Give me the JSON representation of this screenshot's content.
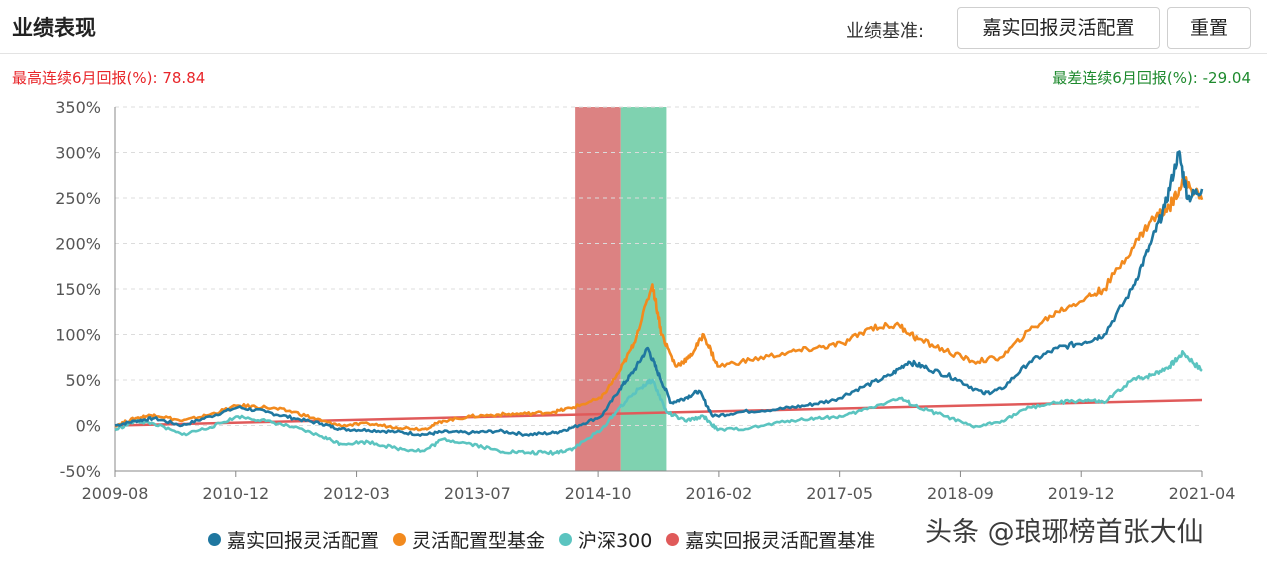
{
  "header": {
    "title": "业绩表现",
    "benchmark_label": "业绩基准:",
    "benchmark_button": "嘉实回报灵活配置",
    "reset_button": "重置"
  },
  "stats": {
    "max_label": "最高连续6月回报(%):",
    "max_value": "78.84",
    "min_label": "最差连续6月回报(%):",
    "min_value": "-29.04"
  },
  "watermark": "头条 @琅琊榜首张大仙",
  "colors": {
    "fund": "#1f77a0",
    "category": "#f28a1e",
    "hs300": "#5bc4c0",
    "benchmark": "#e05a5a",
    "band_red": "#dc8282",
    "band_green": "#7fd2b0"
  },
  "chart_data": {
    "type": "line",
    "title": "",
    "xlabel": "",
    "ylabel": "",
    "x_ticks": [
      "2009-08",
      "2010-12",
      "2012-03",
      "2013-07",
      "2014-10",
      "2016-02",
      "2017-05",
      "2018-09",
      "2019-12",
      "2021-04"
    ],
    "x_range": [
      2009.58,
      2021.25
    ],
    "y_ticks": [
      "350%",
      "300%",
      "250%",
      "200%",
      "150%",
      "100%",
      "50%",
      "0%",
      "-50%"
    ],
    "ylim": [
      -50,
      350
    ],
    "grid": true,
    "legend_position": "bottom",
    "shaded_periods": [
      {
        "start": 2014.52,
        "end": 2015.01,
        "color": "red"
      },
      {
        "start": 2015.01,
        "end": 2015.5,
        "color": "green"
      }
    ],
    "series": [
      {
        "name": "嘉实回报灵活配置",
        "color_key": "fund",
        "points": [
          [
            2009.58,
            0
          ],
          [
            2009.8,
            5
          ],
          [
            2010.0,
            8
          ],
          [
            2010.3,
            0
          ],
          [
            2010.6,
            10
          ],
          [
            2010.9,
            20
          ],
          [
            2011.2,
            15
          ],
          [
            2011.5,
            8
          ],
          [
            2011.8,
            2
          ],
          [
            2012.0,
            -4
          ],
          [
            2012.3,
            -5
          ],
          [
            2012.6,
            -7
          ],
          [
            2012.9,
            -10
          ],
          [
            2013.1,
            -7
          ],
          [
            2013.4,
            -8
          ],
          [
            2013.7,
            -6
          ],
          [
            2014.0,
            -10
          ],
          [
            2014.3,
            -8
          ],
          [
            2014.5,
            -2
          ],
          [
            2014.8,
            10
          ],
          [
            2015.0,
            40
          ],
          [
            2015.15,
            60
          ],
          [
            2015.3,
            85
          ],
          [
            2015.4,
            60
          ],
          [
            2015.55,
            25
          ],
          [
            2015.7,
            30
          ],
          [
            2015.85,
            38
          ],
          [
            2016.0,
            10
          ],
          [
            2016.3,
            15
          ],
          [
            2016.7,
            18
          ],
          [
            2017.0,
            22
          ],
          [
            2017.3,
            28
          ],
          [
            2017.6,
            42
          ],
          [
            2017.9,
            55
          ],
          [
            2018.1,
            70
          ],
          [
            2018.3,
            63
          ],
          [
            2018.6,
            52
          ],
          [
            2018.9,
            35
          ],
          [
            2019.1,
            40
          ],
          [
            2019.4,
            70
          ],
          [
            2019.7,
            85
          ],
          [
            2020.0,
            92
          ],
          [
            2020.2,
            100
          ],
          [
            2020.5,
            150
          ],
          [
            2020.7,
            200
          ],
          [
            2020.85,
            240
          ],
          [
            2021.0,
            300
          ],
          [
            2021.1,
            250
          ],
          [
            2021.25,
            260
          ]
        ]
      },
      {
        "name": "灵活配置型基金",
        "color_key": "category",
        "points": [
          [
            2009.58,
            0
          ],
          [
            2009.8,
            8
          ],
          [
            2010.0,
            12
          ],
          [
            2010.3,
            5
          ],
          [
            2010.6,
            12
          ],
          [
            2010.9,
            22
          ],
          [
            2011.2,
            20
          ],
          [
            2011.5,
            15
          ],
          [
            2011.8,
            5
          ],
          [
            2012.0,
            0
          ],
          [
            2012.3,
            2
          ],
          [
            2012.6,
            -2
          ],
          [
            2012.9,
            -4
          ],
          [
            2013.1,
            5
          ],
          [
            2013.4,
            10
          ],
          [
            2013.7,
            12
          ],
          [
            2014.0,
            13
          ],
          [
            2014.3,
            15
          ],
          [
            2014.5,
            20
          ],
          [
            2014.8,
            30
          ],
          [
            2015.0,
            60
          ],
          [
            2015.15,
            90
          ],
          [
            2015.35,
            155
          ],
          [
            2015.45,
            100
          ],
          [
            2015.6,
            65
          ],
          [
            2015.75,
            75
          ],
          [
            2015.9,
            100
          ],
          [
            2016.05,
            65
          ],
          [
            2016.4,
            72
          ],
          [
            2016.8,
            80
          ],
          [
            2017.1,
            85
          ],
          [
            2017.4,
            90
          ],
          [
            2017.7,
            108
          ],
          [
            2018.0,
            110
          ],
          [
            2018.2,
            95
          ],
          [
            2018.5,
            82
          ],
          [
            2018.8,
            70
          ],
          [
            2019.1,
            75
          ],
          [
            2019.4,
            105
          ],
          [
            2019.7,
            125
          ],
          [
            2020.0,
            140
          ],
          [
            2020.2,
            150
          ],
          [
            2020.5,
            195
          ],
          [
            2020.7,
            225
          ],
          [
            2020.9,
            240
          ],
          [
            2021.05,
            270
          ],
          [
            2021.25,
            248
          ]
        ]
      },
      {
        "name": "沪深300",
        "color_key": "hs300",
        "points": [
          [
            2009.58,
            -5
          ],
          [
            2009.8,
            5
          ],
          [
            2010.0,
            2
          ],
          [
            2010.3,
            -10
          ],
          [
            2010.6,
            -2
          ],
          [
            2010.9,
            10
          ],
          [
            2011.2,
            5
          ],
          [
            2011.5,
            -2
          ],
          [
            2011.8,
            -12
          ],
          [
            2012.0,
            -20
          ],
          [
            2012.3,
            -18
          ],
          [
            2012.6,
            -25
          ],
          [
            2012.9,
            -28
          ],
          [
            2013.1,
            -15
          ],
          [
            2013.4,
            -20
          ],
          [
            2013.7,
            -28
          ],
          [
            2014.0,
            -30
          ],
          [
            2014.3,
            -30
          ],
          [
            2014.5,
            -25
          ],
          [
            2014.8,
            -5
          ],
          [
            2015.0,
            20
          ],
          [
            2015.2,
            40
          ],
          [
            2015.35,
            50
          ],
          [
            2015.5,
            15
          ],
          [
            2015.7,
            5
          ],
          [
            2015.9,
            10
          ],
          [
            2016.05,
            -5
          ],
          [
            2016.4,
            -3
          ],
          [
            2016.8,
            5
          ],
          [
            2017.1,
            8
          ],
          [
            2017.4,
            10
          ],
          [
            2017.7,
            20
          ],
          [
            2018.0,
            30
          ],
          [
            2018.2,
            20
          ],
          [
            2018.5,
            10
          ],
          [
            2018.8,
            -2
          ],
          [
            2019.1,
            5
          ],
          [
            2019.4,
            20
          ],
          [
            2019.7,
            25
          ],
          [
            2020.0,
            28
          ],
          [
            2020.2,
            25
          ],
          [
            2020.5,
            50
          ],
          [
            2020.7,
            55
          ],
          [
            2020.9,
            65
          ],
          [
            2021.05,
            80
          ],
          [
            2021.25,
            60
          ]
        ]
      },
      {
        "name": "嘉实回报灵活配置基准",
        "color_key": "benchmark",
        "points": [
          [
            2009.58,
            0
          ],
          [
            2021.25,
            28
          ]
        ]
      }
    ]
  }
}
